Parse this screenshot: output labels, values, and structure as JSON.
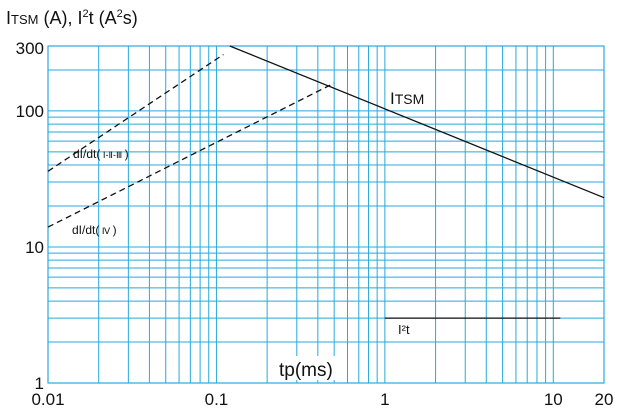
{
  "chart_data": {
    "type": "line",
    "title": "",
    "ylabel": "I<sub>TSM</sub> (A), I²t (A²s)",
    "ylabel_text": "ITSM (A), I²t (A²s)",
    "xlabel": "tp(ms)",
    "x_scale": "log",
    "y_scale": "log",
    "xlim": [
      0.01,
      20
    ],
    "ylim": [
      1,
      300
    ],
    "x_ticks": [
      {
        "value": 0.01,
        "label": "0.01"
      },
      {
        "value": 0.1,
        "label": "0.1"
      },
      {
        "value": 1,
        "label": "1"
      },
      {
        "value": 10,
        "label": "10"
      },
      {
        "value": 20,
        "label": "20"
      }
    ],
    "y_ticks": [
      {
        "value": 1,
        "label": "1"
      },
      {
        "value": 10,
        "label": "10"
      },
      {
        "value": 100,
        "label": "100"
      },
      {
        "value": 300,
        "label": "300"
      }
    ],
    "grid": true,
    "grid_color": "#29a9dc",
    "series": [
      {
        "name": "ITSM",
        "label_main": "I",
        "label_sub": "TSM",
        "style": "solid",
        "color": "#111111",
        "x": [
          0.12,
          20
        ],
        "y": [
          300,
          23
        ]
      },
      {
        "name": "dI/dt(Ⅰ-Ⅱ-Ⅲ)",
        "label_main": "dI/dt(",
        "label_sub": "Ⅰ-Ⅱ-Ⅲ",
        "label_end": ")",
        "style": "dashed",
        "color": "#111111",
        "x": [
          0.01,
          0.11
        ],
        "y": [
          36,
          260
        ]
      },
      {
        "name": "dI/dt(Ⅳ)",
        "label_main": "dI/dt(",
        "label_sub": "Ⅳ",
        "label_end": ")",
        "style": "dashed",
        "color": "#111111",
        "x": [
          0.01,
          0.5
        ],
        "y": [
          14,
          160
        ]
      },
      {
        "name": "I²t",
        "label_main": "I²t",
        "style": "solid",
        "color": "#111111",
        "x": [
          1,
          11
        ],
        "y": [
          3,
          3
        ]
      }
    ]
  },
  "labels": {
    "ylabel_main1": "I",
    "ylabel_sub": "TSM",
    "ylabel_rest": " (A), I",
    "ylabel_sup": "2",
    "ylabel_rest2": "t (A",
    "ylabel_sup2": "2",
    "ylabel_end": "s)",
    "xlabel": "tp(ms)"
  }
}
